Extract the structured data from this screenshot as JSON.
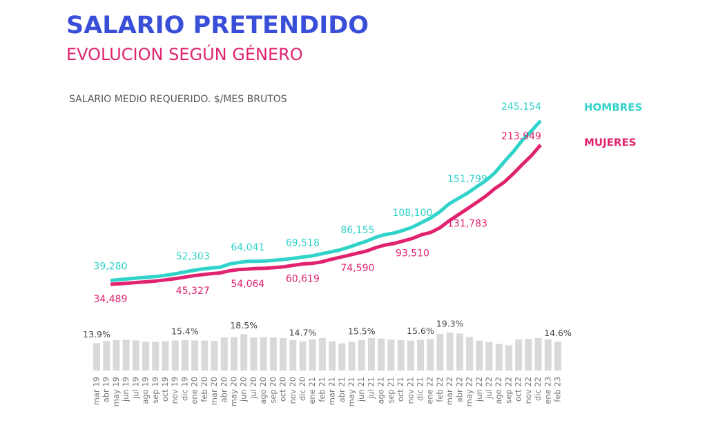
{
  "chart_data": [
    {
      "type": "line",
      "title": "SALARIO PRETENDIDO",
      "subtitle": "EVOLUCION SEGÚN GÉNERO",
      "y_label": "SALARIO MEDIO REQUERIDO. $/MES BRUTOS",
      "series": [
        {
          "name": "HOMBRES",
          "color": "#2fd3c9",
          "values": [
            39280,
            40500,
            41500,
            42600,
            43500,
            44500,
            46000,
            47800,
            50000,
            52303,
            54000,
            55500,
            56500,
            60500,
            62500,
            64041,
            64000,
            64500,
            65500,
            66500,
            68000,
            69518,
            71000,
            73500,
            76000,
            78500,
            82000,
            86155,
            90000,
            95000,
            98500,
            100500,
            104000,
            108100,
            114000,
            120000,
            128000,
            138000,
            145000,
            151799,
            160000,
            168000,
            178000,
            192000,
            205000,
            220000,
            232000,
            245154
          ],
          "value_labels": [
            "39,280",
            null,
            null,
            null,
            null,
            null,
            null,
            null,
            null,
            "52,303",
            null,
            null,
            null,
            null,
            null,
            "64,041",
            null,
            null,
            null,
            null,
            null,
            "69,518",
            null,
            null,
            null,
            null,
            null,
            "86,155",
            null,
            null,
            null,
            null,
            null,
            "108,100",
            null,
            null,
            null,
            null,
            null,
            "151,799",
            null,
            null,
            null,
            null,
            null,
            null,
            null,
            "245,154"
          ]
        },
        {
          "name": "MUJERES",
          "color": "#e0226f",
          "values": [
            34489,
            35200,
            35900,
            36900,
            37700,
            38800,
            40100,
            41600,
            43400,
            45327,
            46800,
            48200,
            49100,
            51800,
            53400,
            54064,
            54800,
            55100,
            56100,
            57100,
            58900,
            60619,
            61300,
            63100,
            66200,
            69000,
            71600,
            74590,
            77300,
            81700,
            85100,
            87000,
            90300,
            93510,
            98300,
            101200,
            107300,
            116200,
            123900,
            131783,
            139700,
            148000,
            157800,
            165800,
            176700,
            188800,
            200300,
            213949
          ],
          "value_labels": [
            "34,489",
            null,
            null,
            null,
            null,
            null,
            null,
            null,
            null,
            "45,327",
            null,
            null,
            null,
            null,
            null,
            "54,064",
            null,
            null,
            null,
            null,
            null,
            "60,619",
            null,
            null,
            null,
            null,
            null,
            "74,590",
            null,
            null,
            null,
            null,
            null,
            "93,510",
            null,
            null,
            null,
            null,
            null,
            "131,783",
            null,
            null,
            null,
            null,
            null,
            null,
            null,
            "213,949"
          ]
        }
      ]
    },
    {
      "type": "bar",
      "color": "#d9d9d9",
      "categories": [
        "mar 19",
        "abr 19",
        "may 19",
        "jun 19",
        "jul 19",
        "ago 19",
        "sep 19",
        "oct 19",
        "nov 19",
        "dic 19",
        "ene 20",
        "feb 20",
        "mar 20",
        "abr 20",
        "may 20",
        "jun 20",
        "jul 20",
        "ago 20",
        "sep 20",
        "oct 20",
        "nov 20",
        "dic 20",
        "ene 21",
        "feb 21",
        "mar 21",
        "abr 21",
        "may 21",
        "jun 21",
        "jul 21",
        "ago 21",
        "sep 21",
        "oct 21",
        "nov 21",
        "dic 21",
        "ene 22",
        "feb 22",
        "mar 22",
        "abr 22",
        "may 22",
        "jun 22",
        "jul 22",
        "ago 22",
        "sep 22",
        "oct 22",
        "nov 22",
        "dic 22",
        "ene 23",
        "feb 23"
      ],
      "values": [
        13.9,
        15.0,
        15.5,
        15.6,
        15.3,
        14.7,
        14.6,
        14.8,
        15.2,
        15.4,
        15.3,
        15.2,
        15.0,
        16.8,
        17.0,
        18.5,
        16.8,
        17.0,
        16.8,
        16.5,
        15.5,
        14.7,
        15.8,
        16.5,
        14.8,
        13.8,
        14.5,
        15.5,
        16.5,
        16.3,
        15.8,
        15.5,
        15.2,
        15.6,
        16.0,
        18.6,
        19.3,
        18.8,
        17.0,
        15.2,
        14.5,
        13.5,
        12.8,
        15.8,
        16.0,
        16.5,
        15.8,
        14.6
      ],
      "value_labels": [
        "13.9%",
        null,
        null,
        null,
        null,
        null,
        null,
        null,
        null,
        "15.4%",
        null,
        null,
        null,
        null,
        null,
        "18.5%",
        null,
        null,
        null,
        null,
        null,
        "14.7%",
        null,
        null,
        null,
        null,
        null,
        "15.5%",
        null,
        null,
        null,
        null,
        null,
        "15.6%",
        null,
        null,
        "19.3%",
        null,
        null,
        null,
        null,
        null,
        null,
        null,
        null,
        null,
        null,
        "14.6%"
      ]
    }
  ]
}
